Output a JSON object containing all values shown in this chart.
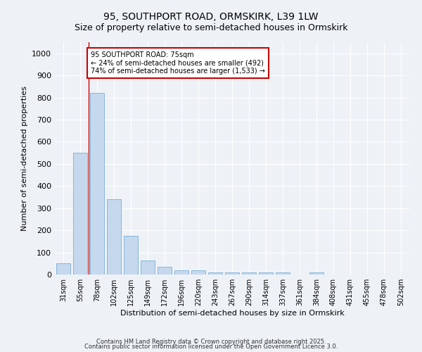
{
  "title1": "95, SOUTHPORT ROAD, ORMSKIRK, L39 1LW",
  "title2": "Size of property relative to semi-detached houses in Ormskirk",
  "xlabel": "Distribution of semi-detached houses by size in Ormskirk",
  "ylabel": "Number of semi-detached properties",
  "categories": [
    "31sqm",
    "55sqm",
    "78sqm",
    "102sqm",
    "125sqm",
    "149sqm",
    "172sqm",
    "196sqm",
    "220sqm",
    "243sqm",
    "267sqm",
    "290sqm",
    "314sqm",
    "337sqm",
    "361sqm",
    "384sqm",
    "408sqm",
    "431sqm",
    "455sqm",
    "478sqm",
    "502sqm"
  ],
  "values": [
    52,
    550,
    820,
    340,
    175,
    63,
    35,
    18,
    18,
    10,
    10,
    10,
    8,
    8,
    0,
    8,
    0,
    0,
    0,
    0,
    0
  ],
  "bar_color": "#c5d8ed",
  "bar_edge_color": "#7aaed6",
  "highlight_line_color": "#cc0000",
  "annotation_line1": "95 SOUTHPORT ROAD: 75sqm",
  "annotation_line2": "← 24% of semi-detached houses are smaller (492)",
  "annotation_line3": "74% of semi-detached houses are larger (1,533) →",
  "annotation_box_color": "#ffffff",
  "annotation_box_edge": "#cc0000",
  "ylim": [
    0,
    1050
  ],
  "yticks": [
    0,
    100,
    200,
    300,
    400,
    500,
    600,
    700,
    800,
    900,
    1000
  ],
  "footer1": "Contains HM Land Registry data © Crown copyright and database right 2025.",
  "footer2": "Contains public sector information licensed under the Open Government Licence 3.0.",
  "bg_color": "#eef2f7",
  "grid_color": "#ffffff"
}
